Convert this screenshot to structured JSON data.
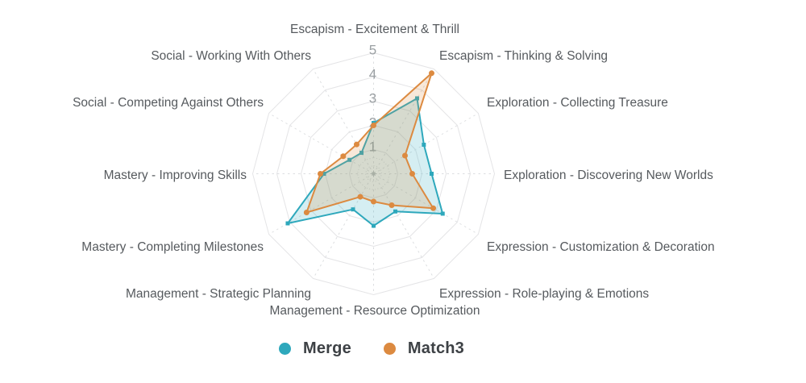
{
  "chart_data": {
    "type": "radar",
    "title": "",
    "categories": [
      "Escapism - Excitement & Thrill",
      "Escapism - Thinking & Solving",
      "Exploration - Collecting Treasure",
      "Exploration - Discovering New Worlds",
      "Expression - Customization & Decoration",
      "Expression - Role-playing & Emotions",
      "Management - Resource Optimization",
      "Management - Strategic Planning",
      "Mastery - Completing Milestones",
      "Mastery - Improving Skills",
      "Social - Competing Against Others",
      "Social - Working With Others"
    ],
    "series": [
      {
        "name": "Merge",
        "color": "#2ea8bc",
        "marker": "square",
        "values": [
          2.1,
          3.6,
          2.4,
          2.4,
          3.3,
          1.8,
          2.15,
          1.7,
          4.1,
          2.05,
          1.15,
          1.0
        ]
      },
      {
        "name": "Match3",
        "color": "#dc8a40",
        "marker": "circle",
        "values": [
          2.0,
          4.8,
          1.5,
          1.6,
          2.85,
          1.5,
          1.15,
          1.1,
          3.2,
          2.2,
          1.45,
          1.4
        ]
      }
    ],
    "radial_ticks": [
      "1",
      "2",
      "3",
      "4",
      "5"
    ],
    "rlim": [
      0,
      5
    ],
    "grid": "polygon",
    "grid_rings": 5,
    "legend_position": "bottom"
  },
  "colors": {
    "ring_line": "#e4e4e6",
    "spoke_line": "#dcdee0",
    "minor_ring": "#d8dadc",
    "tick_label": "#9ba0a3",
    "axis_label": "#565a5e",
    "center_mark": "#b8bcbe",
    "background": "#ffffff"
  }
}
